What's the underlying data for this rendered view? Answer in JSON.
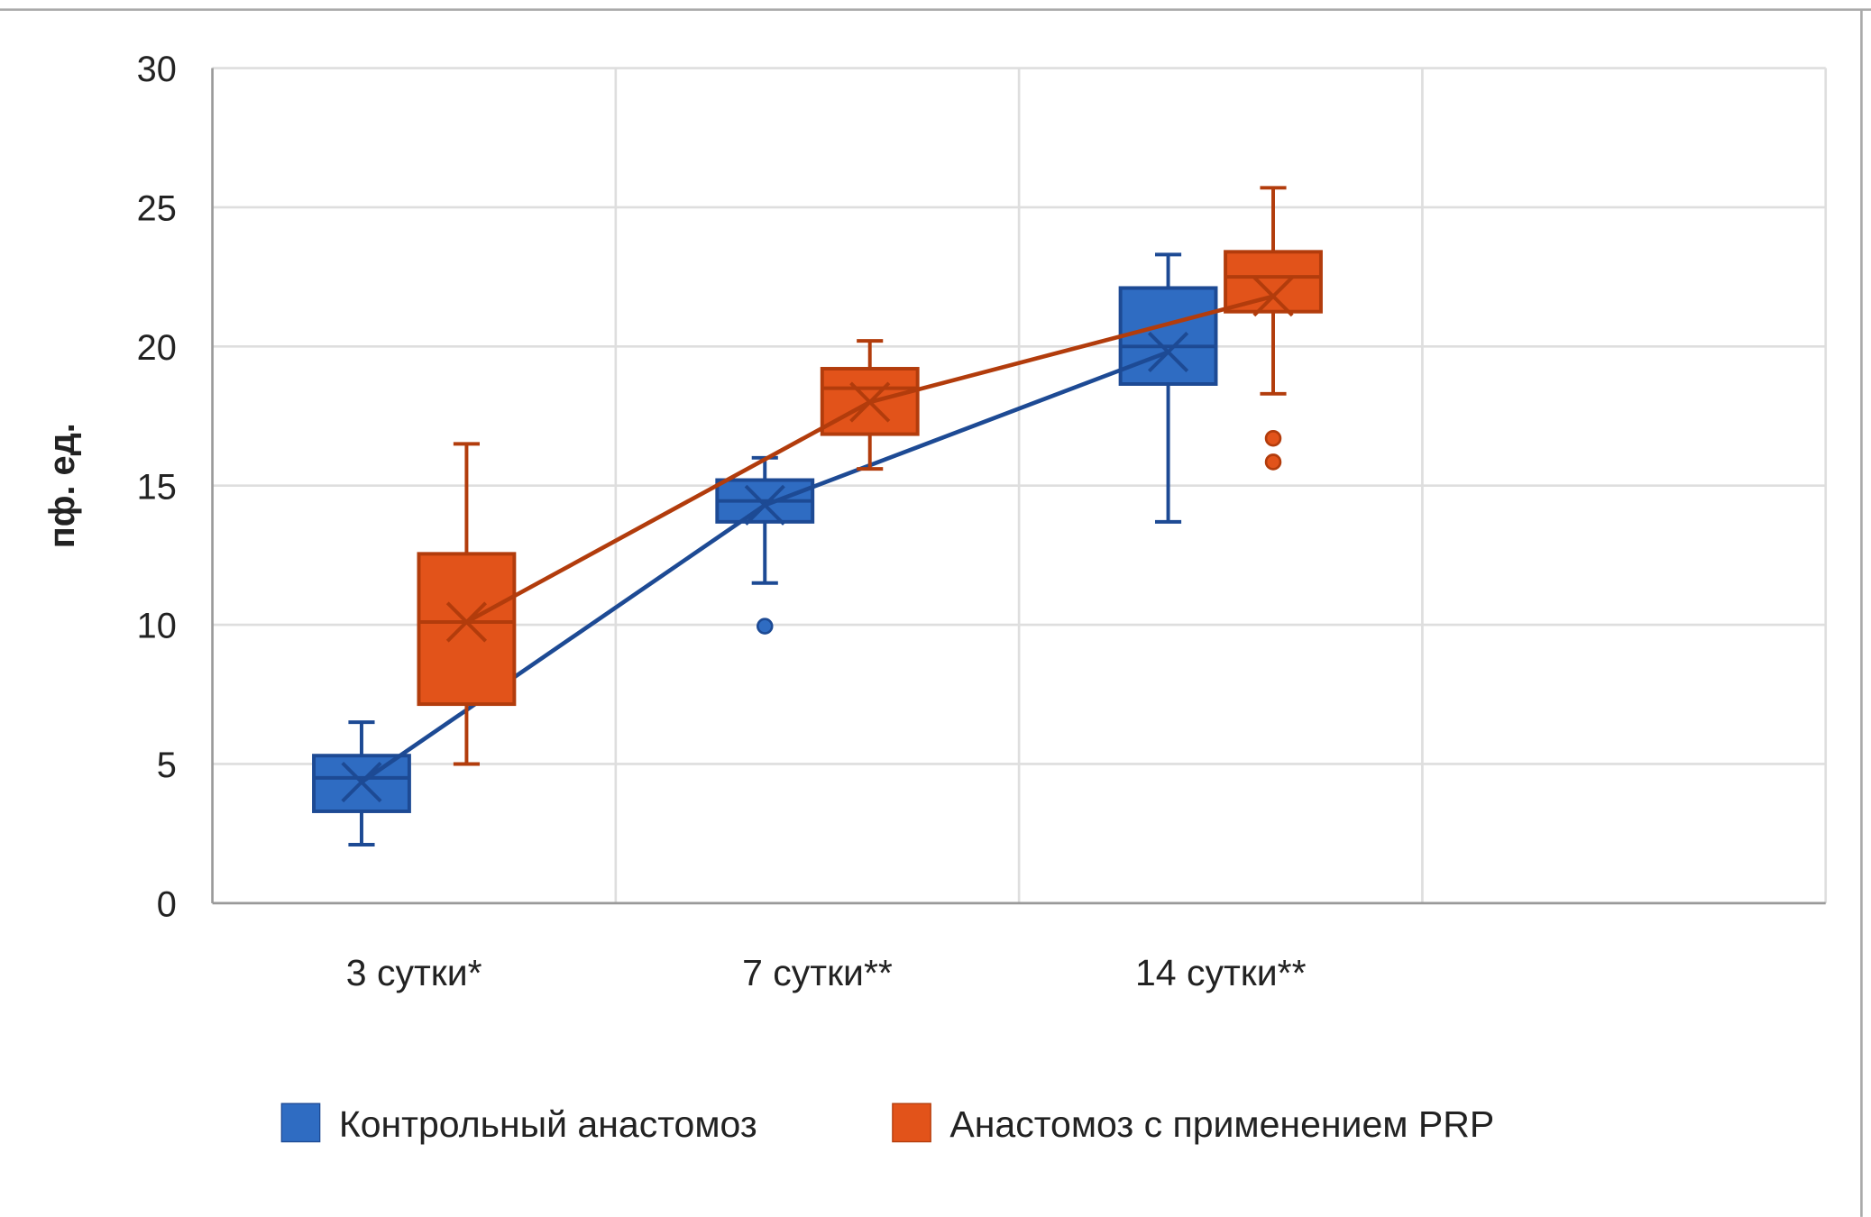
{
  "chart_data": {
    "type": "box",
    "title": "",
    "xlabel": "",
    "ylabel": "пф. ед.",
    "ylim": [
      0,
      30
    ],
    "yticks": [
      0,
      5,
      10,
      15,
      20,
      25,
      30
    ],
    "grid": true,
    "categories": [
      "3 сутки*",
      "7 сутки**",
      "14 сутки**",
      ""
    ],
    "legend_position": "bottom",
    "series": [
      {
        "name": "Контрольный анастомоз",
        "color": "#2f6cc2",
        "stroke": "#1d4a94",
        "boxes": [
          {
            "min": 2.1,
            "q1": 3.3,
            "median": 4.5,
            "q3": 5.3,
            "max": 6.5,
            "mean": 4.35,
            "outliers": []
          },
          {
            "min": 11.5,
            "q1": 13.7,
            "median": 14.45,
            "q3": 15.2,
            "max": 16.0,
            "mean": 14.3,
            "outliers": [
              9.95
            ]
          },
          {
            "min": 13.7,
            "q1": 18.65,
            "median": 20.0,
            "q3": 22.1,
            "max": 23.3,
            "mean": 19.8,
            "outliers": []
          }
        ]
      },
      {
        "name": "Анастомоз с применением PRP",
        "color": "#e2531a",
        "stroke": "#b23c0c",
        "boxes": [
          {
            "min": 5.0,
            "q1": 7.15,
            "median": 10.1,
            "q3": 12.55,
            "max": 16.5,
            "mean": 10.1,
            "outliers": []
          },
          {
            "min": 15.6,
            "q1": 16.85,
            "median": 18.5,
            "q3": 19.2,
            "max": 20.2,
            "mean": 18.0,
            "outliers": []
          },
          {
            "min": 18.3,
            "q1": 21.25,
            "median": 22.5,
            "q3": 23.4,
            "max": 25.7,
            "mean": 21.8,
            "outliers": [
              16.7,
              15.85
            ]
          }
        ]
      }
    ]
  }
}
